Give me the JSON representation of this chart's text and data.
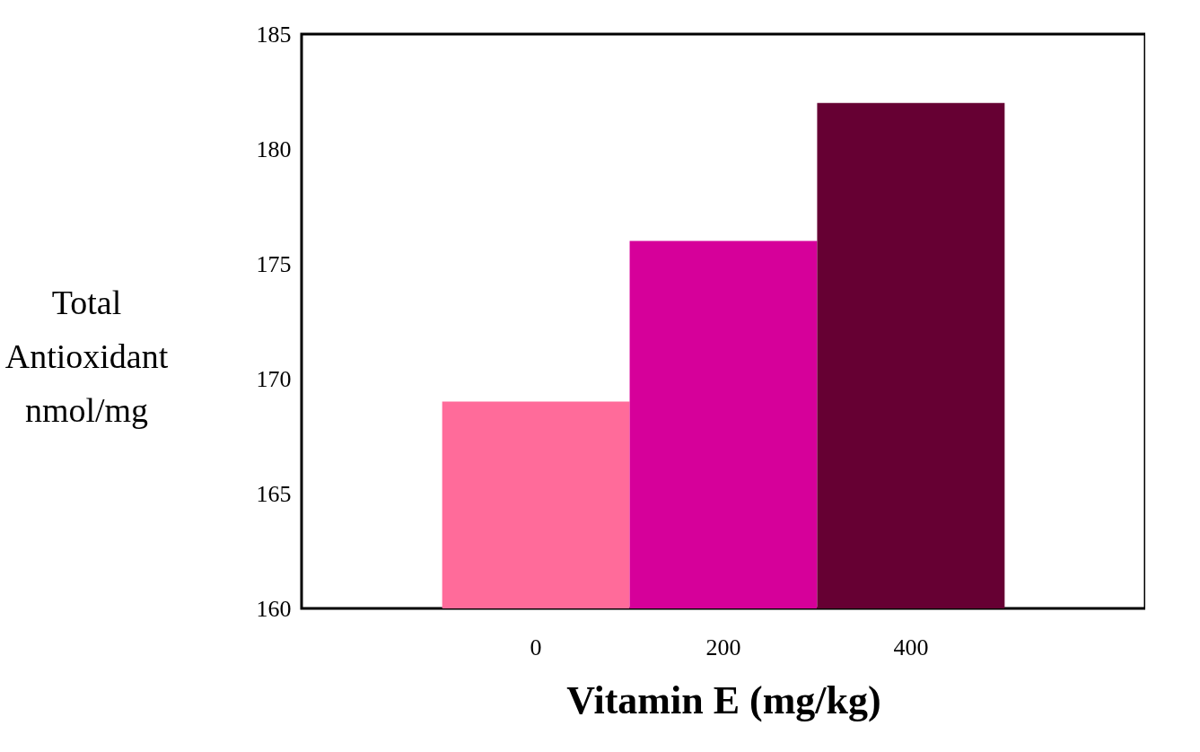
{
  "chart_data": {
    "type": "bar",
    "xlabel": "Vitamin E (mg/kg)",
    "ylabel": "Total Antioxidant nmol/mg",
    "categories": [
      "0",
      "200",
      "400"
    ],
    "values": [
      169,
      176,
      182
    ],
    "colors": [
      "#ff6b9a",
      "#d6009a",
      "#660033"
    ],
    "ylim": [
      160,
      185
    ],
    "yticks": [
      160,
      165,
      170,
      175,
      180,
      185
    ],
    "grid": false,
    "legend": false
  }
}
